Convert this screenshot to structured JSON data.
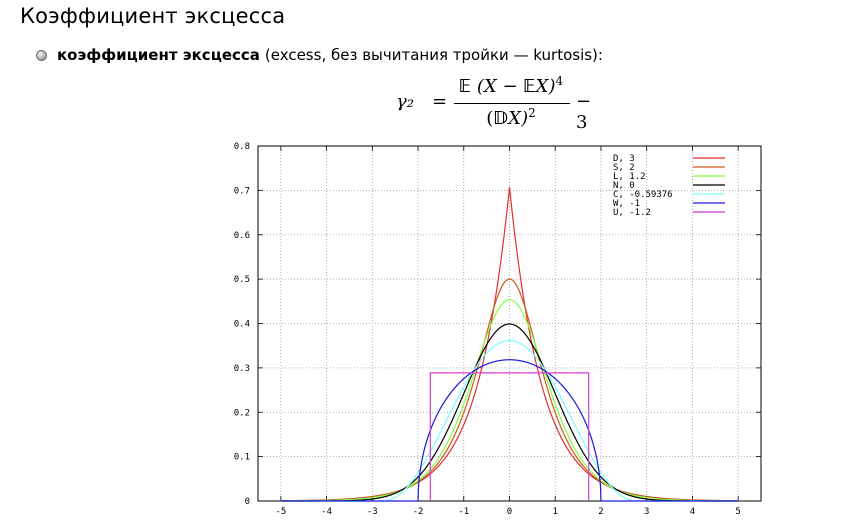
{
  "slide": {
    "title": "Коэффициент эксцесса",
    "bullet_term": "коэффициент эксцесса",
    "bullet_rest": "(excess, без вычитания тройки — kurtosis):"
  },
  "formula": {
    "lhs": "γ₂",
    "eq": "=",
    "num_bb1": "𝔼",
    "num_mid": " (X − ",
    "num_bb2": "𝔼",
    "num_tail": "X)",
    "num_exp": "4",
    "den_open": "(",
    "den_bb": "𝔻",
    "den_tail": "X)",
    "den_exp": "2",
    "minus3": "− 3"
  },
  "chart_data": {
    "type": "line",
    "title": "",
    "xlabel": "",
    "ylabel": "",
    "xlim": [
      -5.5,
      5.5
    ],
    "ylim": [
      0,
      0.8
    ],
    "grid": true,
    "legend_position": "top-right",
    "x_ticks": [
      "-5",
      "-4",
      "-3",
      "-2",
      "-1",
      "0",
      "1",
      "2",
      "3",
      "4",
      "5"
    ],
    "y_ticks": [
      "0",
      "0.1",
      "0.2",
      "0.3",
      "0.4",
      "0.5",
      "0.6",
      "0.7",
      "0.8"
    ],
    "series": [
      {
        "name": "D,  3",
        "color": "#e32f2f",
        "dist": "laplace",
        "peak": 0.7071
      },
      {
        "name": "S,  2",
        "color": "#cc5a1e",
        "dist": "sech",
        "peak": 0.5
      },
      {
        "name": "L,  1.2",
        "color": "#80ff3a",
        "dist": "logistic",
        "peak": 0.4534
      },
      {
        "name": "N,  0",
        "color": "#000000",
        "dist": "normal",
        "peak": 0.3989
      },
      {
        "name": "C, -0.59376",
        "color": "#7dfcff",
        "dist": "raised_cosine",
        "peak": 0.3643
      },
      {
        "name": "W, -1",
        "color": "#1a1ad9",
        "dist": "semicircle",
        "peak": 0.3183
      },
      {
        "name": "U, -1.2",
        "color": "#d63bd6",
        "dist": "uniform",
        "peak": 0.2887
      }
    ]
  }
}
